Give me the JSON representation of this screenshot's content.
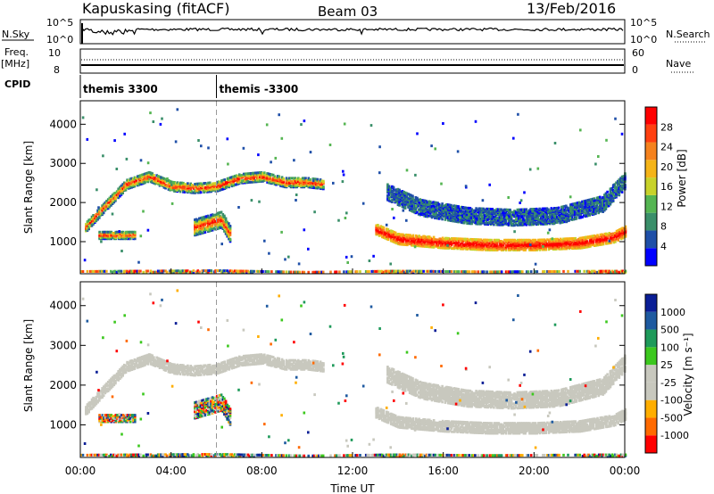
{
  "header": {
    "station": "Kapuskasing (fitACF)",
    "beam": "Beam 03",
    "date": "13/Feb/2016"
  },
  "panels": {
    "nsky": {
      "label": "N.Sky",
      "right_label": "N.Search",
      "left_ticks": [
        "10^5",
        "10^0"
      ],
      "right_ticks": [
        "10^5",
        "10^0"
      ]
    },
    "freq": {
      "label_line1": "Freq.",
      "label_line2": "[MHz]",
      "right_label": "Nave",
      "left_ticks": [
        "10",
        "8"
      ],
      "right_ticks": [
        "60",
        "0"
      ]
    },
    "cpid": {
      "label": "CPID",
      "segments": [
        {
          "start_hour": 0.0,
          "label": "themis 3300"
        },
        {
          "start_hour": 6.0,
          "label": "themis -3300"
        }
      ]
    }
  },
  "colors": {
    "power": [
      "#0000ff",
      "#1f4fa8",
      "#3a8f6a",
      "#55b552",
      "#c8d22a",
      "#f5b418",
      "#f5821e",
      "#ff4010",
      "#ff0000"
    ],
    "velocity": [
      "#ff0000",
      "#ff6a00",
      "#ffae00",
      "#c8c8be",
      "#c8c8be",
      "#3cc81e",
      "#1e9a5a",
      "#1e5aa0",
      "#0a1e96"
    ],
    "marker": "#9a9a9a"
  },
  "chart_data": [
    {
      "type": "heatmap",
      "name": "power",
      "xlabel": "Time UT",
      "ylabel": "Slant Range [km]",
      "xlim": [
        0,
        24
      ],
      "ylim": [
        180,
        4600
      ],
      "x_ticks": [
        "00:00",
        "04:00",
        "08:00",
        "12:00",
        "16:00",
        "20:00",
        "00:00"
      ],
      "y_ticks": [
        1000,
        2000,
        3000,
        4000
      ],
      "colorbar": {
        "label": "Power [dB]",
        "ticks": [
          "4",
          "8",
          "12",
          "16",
          "20",
          "24",
          "28"
        ]
      },
      "bands": [
        {
          "name": "e-region",
          "points": [
            [
              0,
              220
            ],
            [
              6,
              240
            ],
            [
              10,
              200
            ],
            [
              14,
              230
            ],
            [
              18,
              210
            ],
            [
              24,
              230
            ]
          ],
          "half_width": 60
        },
        {
          "name": "upper-f",
          "points": [
            [
              0.2,
              1400
            ],
            [
              1,
              1900
            ],
            [
              2,
              2500
            ],
            [
              3,
              2700
            ],
            [
              4,
              2450
            ],
            [
              5,
              2400
            ],
            [
              6,
              2450
            ],
            [
              7,
              2650
            ],
            [
              8,
              2700
            ],
            [
              9,
              2550
            ],
            [
              10,
              2550
            ],
            [
              10.7,
              2500
            ]
          ],
          "half_width": 120
        },
        {
          "name": "lower-f",
          "points": [
            [
              13,
              1350
            ],
            [
              14,
              1100
            ],
            [
              16,
              1000
            ],
            [
              18,
              950
            ],
            [
              20,
              950
            ],
            [
              22,
              1000
            ],
            [
              23.5,
              1150
            ],
            [
              24,
              1300
            ]
          ],
          "half_width": 130
        },
        {
          "name": "spread-f",
          "points": [
            [
              13.5,
              2300
            ],
            [
              15,
              1900
            ],
            [
              17,
              1700
            ],
            [
              19,
              1650
            ],
            [
              21,
              1700
            ],
            [
              23,
              2000
            ],
            [
              24,
              2600
            ]
          ],
          "half_width": 200
        },
        {
          "name": "early-patch",
          "points": [
            [
              0.8,
              1200
            ],
            [
              2.4,
              1200
            ]
          ],
          "half_width": 90
        },
        {
          "name": "mid-patch",
          "points": [
            [
              5,
              1400
            ],
            [
              6.2,
              1600
            ],
            [
              6.6,
              1200
            ]
          ],
          "half_width": 200
        }
      ]
    },
    {
      "type": "heatmap",
      "name": "velocity",
      "xlabel": "Time UT",
      "ylabel": "Slant Range [km]",
      "xlim": [
        0,
        24
      ],
      "ylim": [
        180,
        4600
      ],
      "x_ticks": [
        "00:00",
        "04:00",
        "08:00",
        "12:00",
        "16:00",
        "20:00",
        "00:00"
      ],
      "y_ticks": [
        1000,
        2000,
        3000,
        4000
      ],
      "colorbar": {
        "label": "Velocity [m s⁻¹]",
        "ticks": [
          "1000",
          "500",
          "100",
          "25",
          "-25",
          "-100",
          "-500",
          "-1000"
        ]
      }
    }
  ]
}
